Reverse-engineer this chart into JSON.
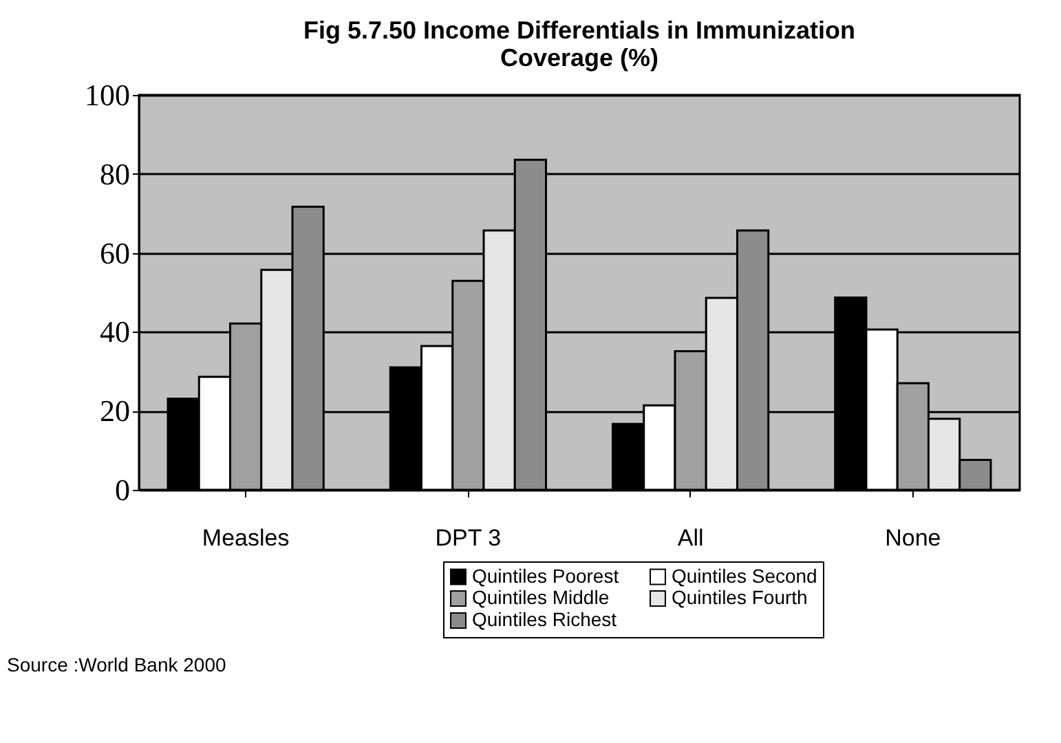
{
  "chart_data": {
    "type": "bar",
    "title": "Fig 5.7.50 Income Differentials in Immunization Coverage (%)",
    "categories": [
      "Measles",
      "DPT 3",
      "All",
      "None"
    ],
    "series": [
      {
        "name": "Quintiles Poorest",
        "color": "#000000",
        "values": [
          23.1,
          31.0,
          16.7,
          48.7
        ]
      },
      {
        "name": "Quintiles Second",
        "color": "#ffffff",
        "values": [
          28.6,
          36.4,
          21.4,
          40.6
        ]
      },
      {
        "name": "Quintiles Middle",
        "color": "#a0a0a0",
        "values": [
          42.1,
          52.9,
          35.1,
          27.0
        ]
      },
      {
        "name": "Quintiles Fourth",
        "color": "#e6e6e6",
        "values": [
          55.7,
          65.7,
          48.6,
          18.0
        ]
      },
      {
        "name": "Quintiles Richest",
        "color": "#8c8c8c",
        "values": [
          71.7,
          83.6,
          65.7,
          7.6
        ]
      }
    ],
    "ylim": [
      0,
      100
    ],
    "yticks": [
      0,
      20,
      40,
      60,
      80,
      100
    ],
    "grid": "y",
    "legend": "bottom right",
    "annotations": [
      "Source :World Bank 2000"
    ]
  }
}
